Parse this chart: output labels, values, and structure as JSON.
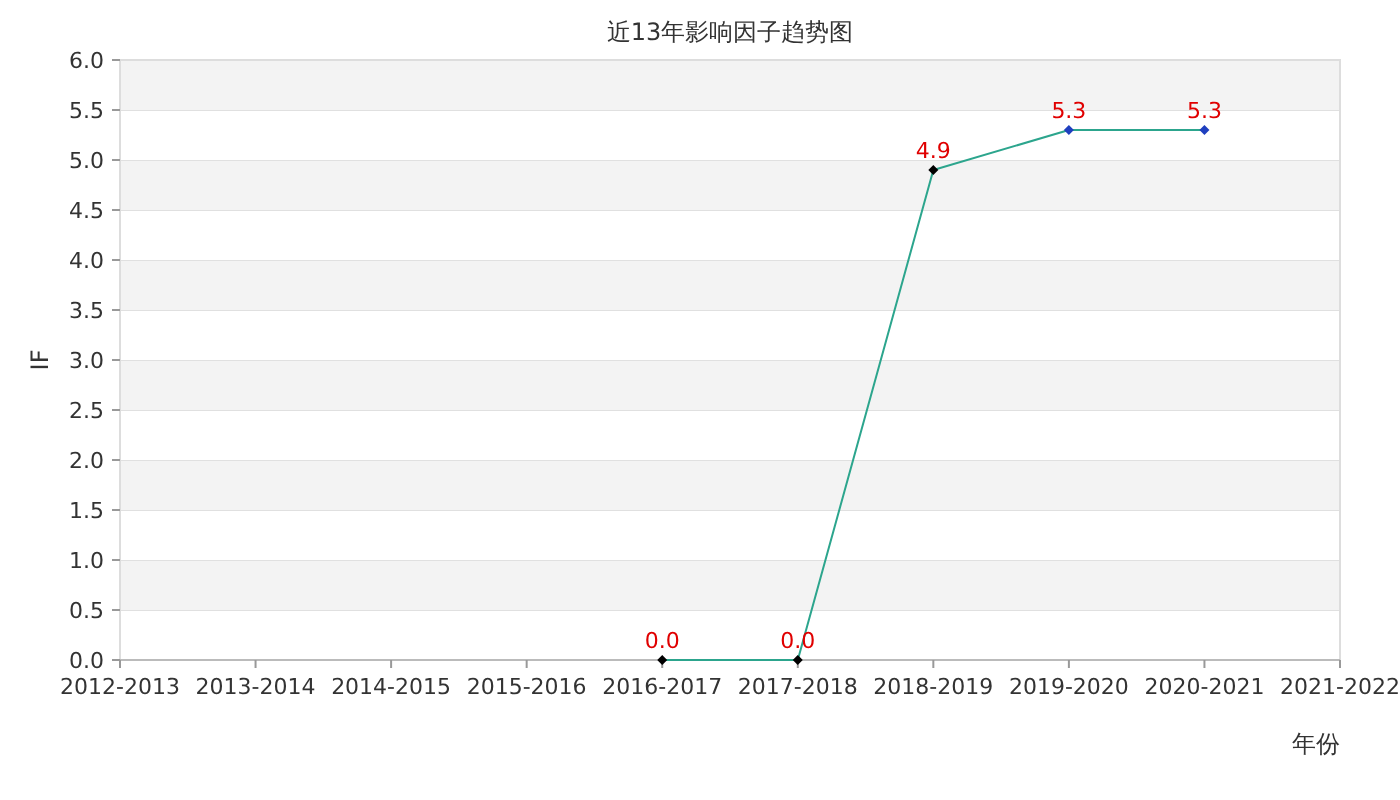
{
  "chart_data": {
    "type": "line",
    "title": "近13年影响因子趋势图",
    "xlabel": "年份",
    "ylabel": "IF",
    "categories": [
      "2012-2013",
      "2013-2014",
      "2014-2015",
      "2015-2016",
      "2016-2017",
      "2017-2018",
      "2018-2019",
      "2019-2020",
      "2020-2021",
      "2021-2022"
    ],
    "series": [
      {
        "color": "#2ca58d",
        "colors": [
          null,
          null,
          null,
          null,
          "#000000",
          "#000000",
          "#000000",
          "#1f3fbf",
          "#1f3fbf",
          null
        ],
        "values": [
          null,
          null,
          null,
          null,
          0.0,
          0.0,
          4.9,
          5.3,
          5.3,
          null
        ],
        "value_labels": [
          null,
          null,
          null,
          null,
          "0.0",
          "0.0",
          "4.9",
          "5.3",
          "5.3",
          null
        ]
      }
    ],
    "ylim": [
      0,
      6
    ],
    "yticks": [
      {
        "value": 0,
        "label": "0.0"
      },
      {
        "value": 0.5,
        "label": "0.5"
      },
      {
        "value": 1,
        "label": "1.0"
      },
      {
        "value": 1.5,
        "label": "1.5"
      },
      {
        "value": 2,
        "label": "2.0"
      },
      {
        "value": 2.5,
        "label": "2.5"
      },
      {
        "value": 3,
        "label": "3.0"
      },
      {
        "value": 3.5,
        "label": "3.5"
      },
      {
        "value": 4,
        "label": "4.0"
      },
      {
        "value": 4.5,
        "label": "4.5"
      },
      {
        "value": 5,
        "label": "5.0"
      },
      {
        "value": 5.5,
        "label": "5.5"
      },
      {
        "value": 6,
        "label": "6.0"
      }
    ],
    "grid": "y",
    "marker": "diamond"
  }
}
